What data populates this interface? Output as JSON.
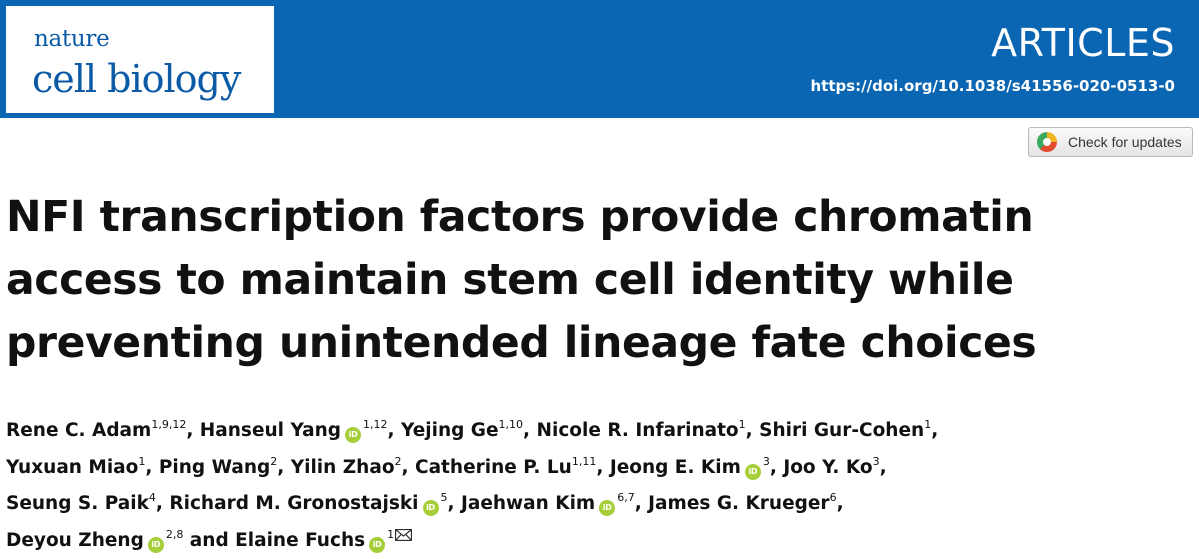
{
  "journal": {
    "line1": "nature",
    "line2": "cell biology"
  },
  "header": {
    "section": "ARTICLES",
    "doi": "https://doi.org/10.1038/s41556-020-0513-0"
  },
  "check_updates": {
    "label": "Check for updates"
  },
  "orcid_text": "iD",
  "title_lines": [
    "NFI transcription factors provide chromatin",
    "access to maintain stem cell identity while",
    "preventing unintended lineage fate choices"
  ],
  "authors": [
    {
      "name": "Rene C. Adam",
      "aff": "1,9,12",
      "orcid": false
    },
    {
      "name": "Hanseul Yang",
      "aff": "1,12",
      "orcid": true
    },
    {
      "name": "Yejing Ge",
      "aff": "1,10",
      "orcid": false
    },
    {
      "name": "Nicole R. Infarinato",
      "aff": "1",
      "orcid": false
    },
    {
      "name": "Shiri Gur-Cohen",
      "aff": "1",
      "orcid": false
    },
    {
      "name": "Yuxuan Miao",
      "aff": "1",
      "orcid": false
    },
    {
      "name": "Ping Wang",
      "aff": "2",
      "orcid": false
    },
    {
      "name": "Yilin Zhao",
      "aff": "2",
      "orcid": false
    },
    {
      "name": "Catherine P. Lu",
      "aff": "1,11",
      "orcid": false
    },
    {
      "name": "Jeong E. Kim",
      "aff": "3",
      "orcid": true
    },
    {
      "name": "Joo Y. Ko",
      "aff": "3",
      "orcid": false
    },
    {
      "name": "Seung S. Paik",
      "aff": "4",
      "orcid": false
    },
    {
      "name": "Richard M. Gronostajski",
      "aff": "5",
      "orcid": true
    },
    {
      "name": "Jaehwan Kim",
      "aff": "6,7",
      "orcid": true
    },
    {
      "name": "James G. Krueger",
      "aff": "6",
      "orcid": false
    },
    {
      "name": "Deyou Zheng",
      "aff": "2,8",
      "orcid": true
    },
    {
      "name": "Elaine Fuchs",
      "aff": "1",
      "orcid": true,
      "corresponding": true
    }
  ],
  "author_separators": [
    ", ",
    ", ",
    ", ",
    ", ",
    ",",
    ", ",
    ", ",
    ", ",
    ", ",
    ", ",
    ",",
    ", ",
    ", ",
    ", ",
    ",",
    " and ",
    ""
  ],
  "author_line_breaks": [
    5,
    11,
    15
  ]
}
